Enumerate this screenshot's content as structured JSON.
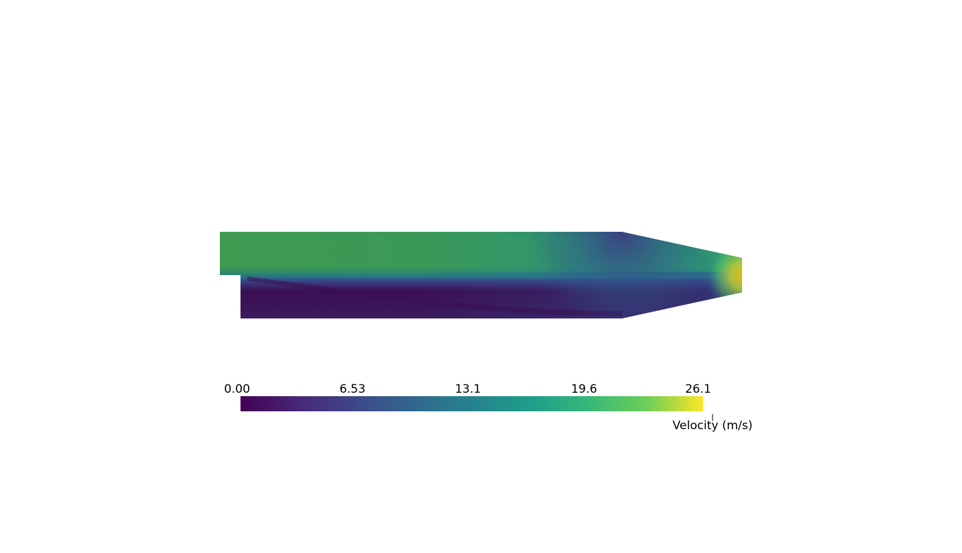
{
  "colorbar": {
    "title": "Velocity (m/s)",
    "range": [
      0.0,
      26.1
    ],
    "tick_labels": [
      "0.00",
      "6.53",
      "13.1",
      "19.6",
      "26.1"
    ],
    "colormap": "viridis",
    "colormap_stops": [
      "#440154",
      "#3b528b",
      "#21918c",
      "#5ec962",
      "#fde725"
    ]
  },
  "field": {
    "upper_stream_color": "#3f9a4f",
    "lower_stream_color": "#3b0f52",
    "outlet_jet_color": "#e3bd1a"
  }
}
